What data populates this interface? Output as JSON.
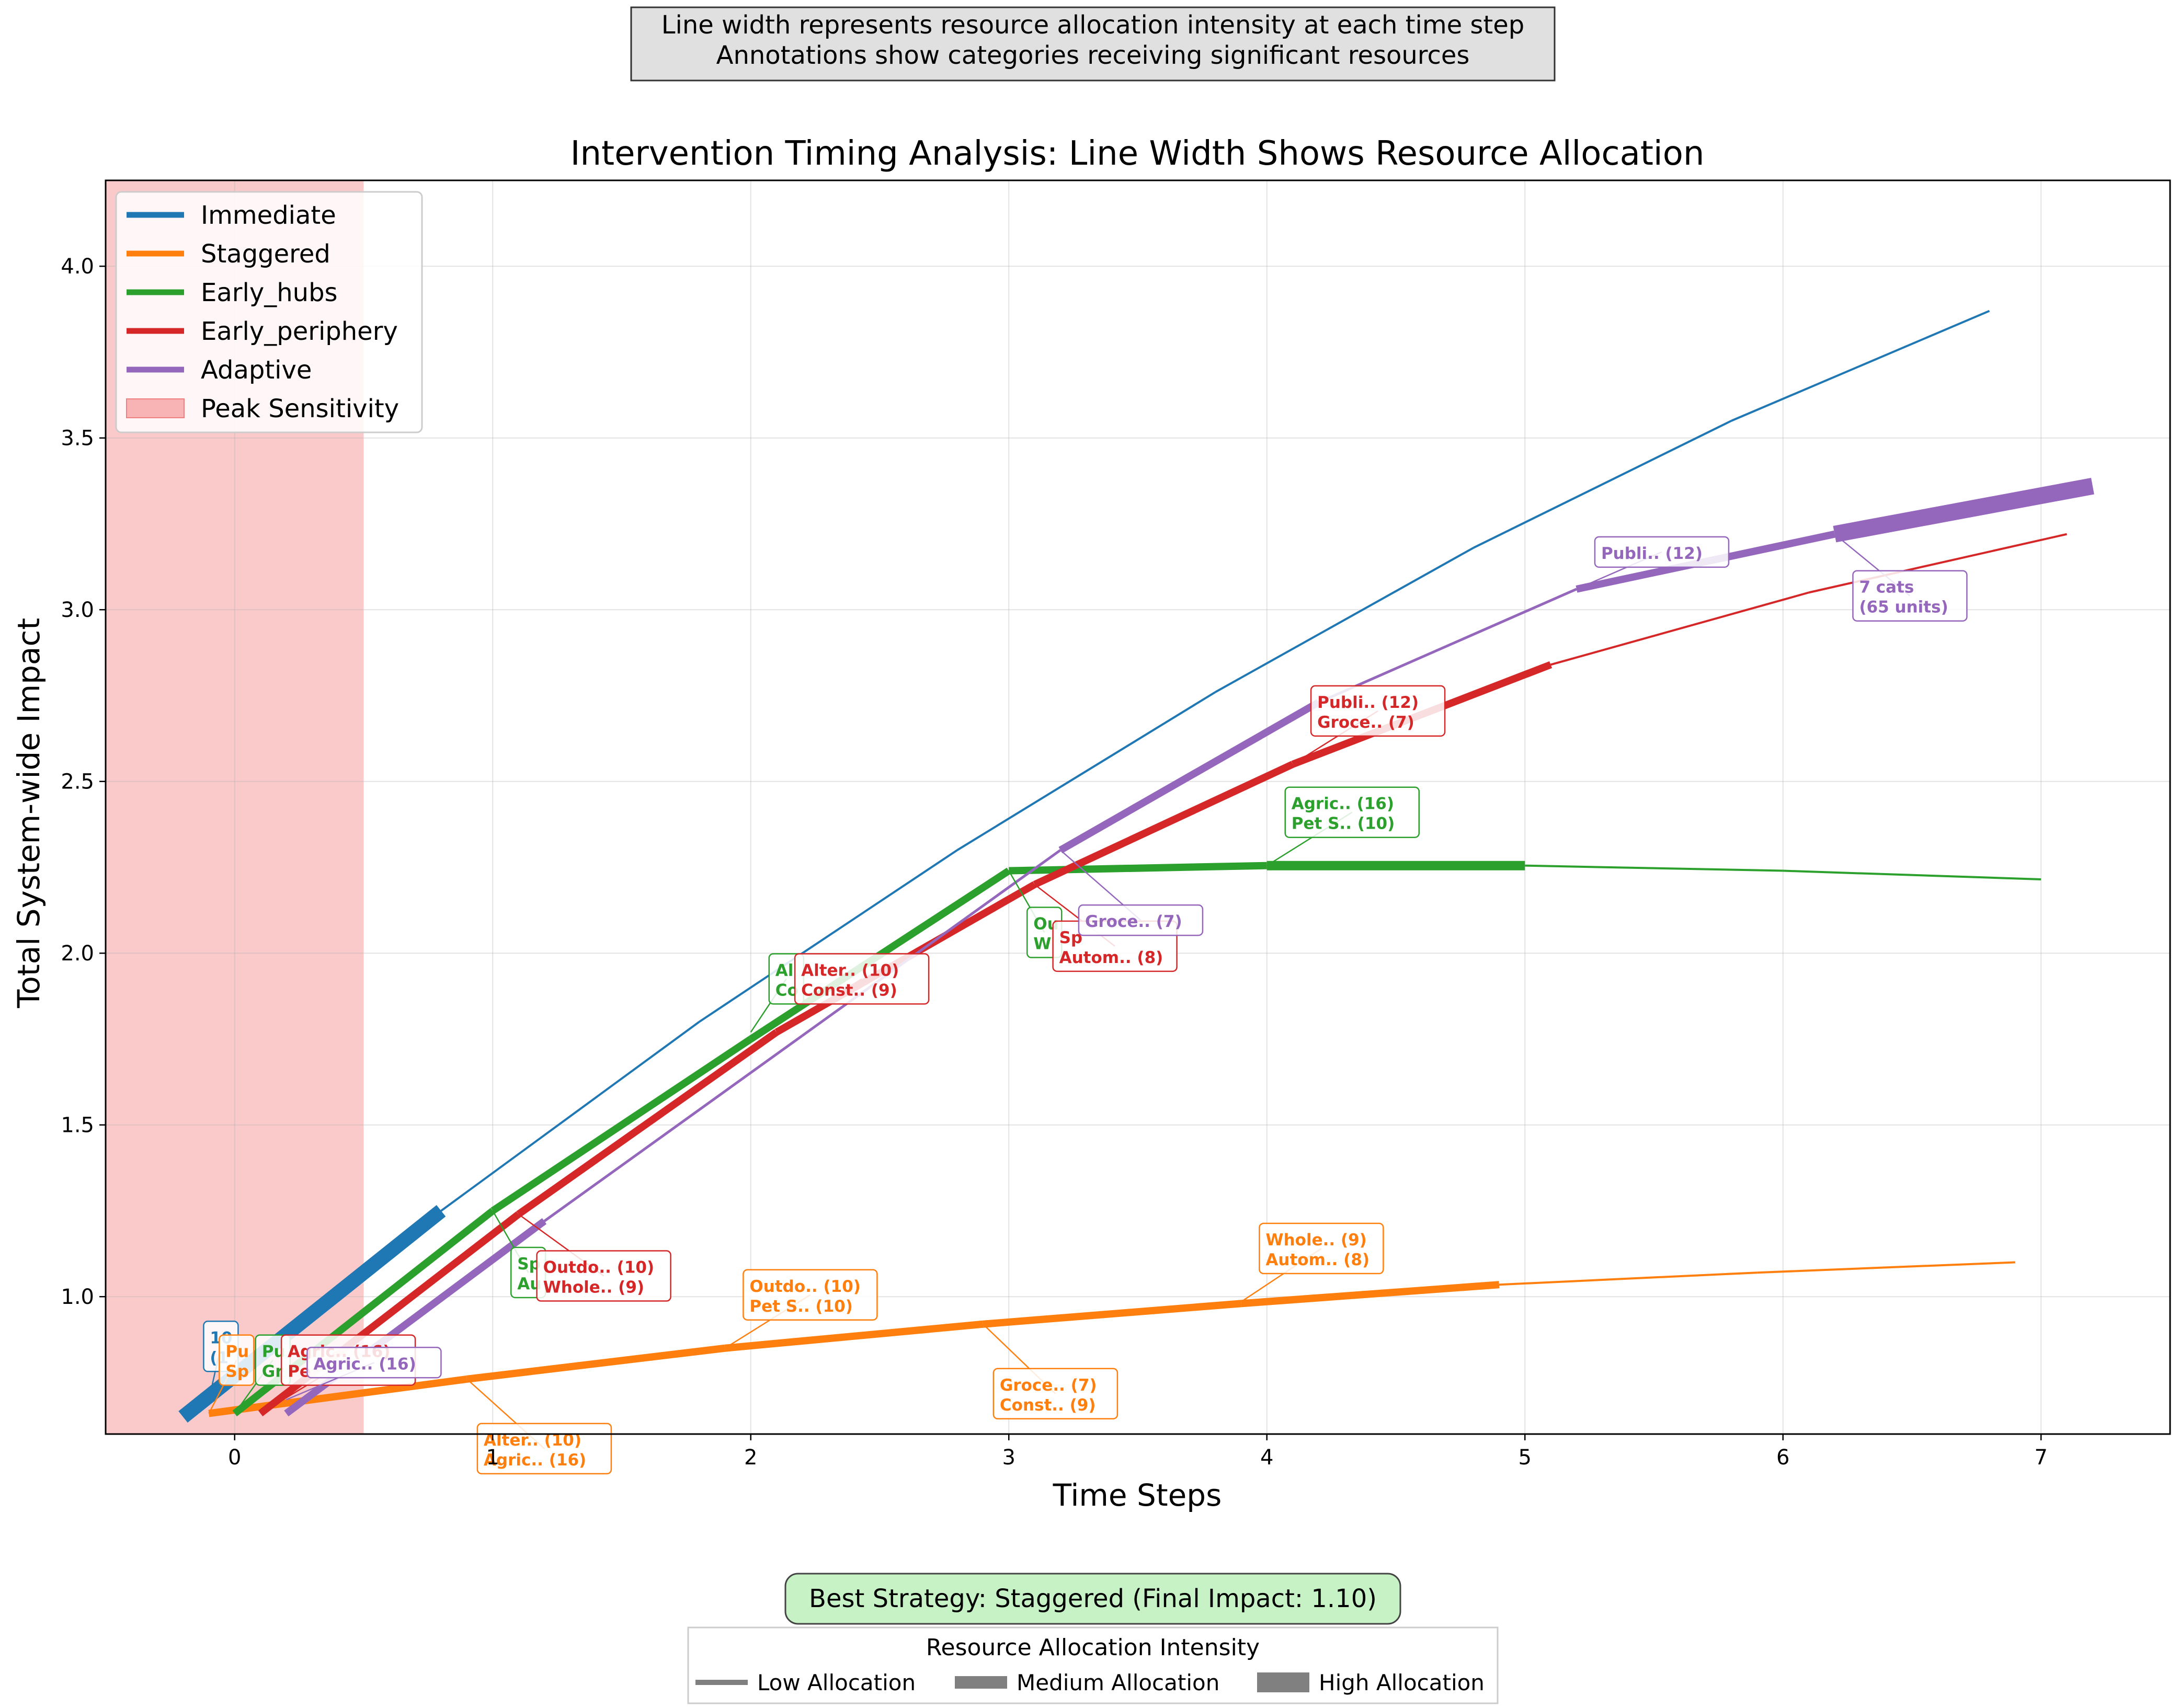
{
  "chart_data": {
    "type": "line",
    "title": "Intervention Timing Analysis: Line Width Shows Resource Allocation",
    "xlabel": "Time Steps",
    "ylabel": "Total System-wide Impact",
    "xlim": [
      -0.5,
      7.5
    ],
    "ylim": [
      0.6,
      4.25
    ],
    "xticks": [
      "0",
      "1",
      "2",
      "3",
      "4",
      "5",
      "6",
      "7"
    ],
    "yticks": [
      "1.0",
      "1.5",
      "2.0",
      "2.5",
      "3.0",
      "3.5",
      "4.0"
    ],
    "xtick_values": [
      0,
      1,
      2,
      3,
      4,
      5,
      6,
      7
    ],
    "ytick_values": [
      1.0,
      1.5,
      2.0,
      2.5,
      3.0,
      3.5,
      4.0
    ],
    "grid": true,
    "legend_position": "top-left",
    "colors": {
      "Immediate": "#1f77b4",
      "Staggered": "#ff7f0e",
      "Early_hubs": "#2ca02c",
      "Early_periphery": "#d62728",
      "Adaptive": "#9467bd",
      "peak": "#f8b4b4"
    },
    "shaded_region": {
      "label": "Peak Sensitivity",
      "x_start": -0.5,
      "x_end": 0.5
    },
    "series": [
      {
        "name": "Immediate",
        "color": "#1f77b4",
        "x": [
          -0.2,
          0.8,
          1.8,
          2.8,
          3.8,
          4.8,
          5.8,
          6.8
        ],
        "y": [
          0.65,
          1.25,
          1.8,
          2.3,
          2.76,
          3.18,
          3.55,
          3.87
        ],
        "widths": [
          28,
          4,
          4,
          4,
          4,
          4,
          4
        ]
      },
      {
        "name": "Staggered",
        "color": "#ff7f0e",
        "x": [
          -0.1,
          0.9,
          1.9,
          2.9,
          3.9,
          4.9,
          5.9,
          6.9
        ],
        "y": [
          0.66,
          0.76,
          0.85,
          0.92,
          0.98,
          1.035,
          1.07,
          1.1
        ],
        "widths": [
          14,
          14,
          14,
          14,
          14,
          4,
          4
        ]
      },
      {
        "name": "Early_hubs",
        "color": "#2ca02c",
        "x": [
          0.0,
          1.0,
          2.0,
          3.0,
          4.0,
          5.0,
          6.0,
          7.0
        ],
        "y": [
          0.66,
          1.25,
          1.75,
          2.24,
          2.255,
          2.255,
          2.24,
          2.215
        ],
        "widths": [
          14,
          14,
          14,
          14,
          18,
          4,
          4
        ]
      },
      {
        "name": "Early_periphery",
        "color": "#d62728",
        "x": [
          0.1,
          1.1,
          2.1,
          3.1,
          4.1,
          5.1,
          6.1,
          7.1
        ],
        "y": [
          0.66,
          1.24,
          1.77,
          2.2,
          2.55,
          2.84,
          3.05,
          3.22
        ],
        "widths": [
          14,
          14,
          14,
          14,
          14,
          4,
          4
        ]
      },
      {
        "name": "Adaptive",
        "color": "#9467bd",
        "x": [
          0.2,
          1.2,
          2.2,
          3.2,
          4.2,
          5.2,
          6.2,
          7.2
        ],
        "y": [
          0.66,
          1.22,
          1.76,
          2.3,
          2.73,
          3.06,
          3.22,
          3.36
        ],
        "widths": [
          14,
          5,
          5,
          14,
          5,
          14,
          32
        ]
      }
    ],
    "annotations": [
      {
        "series": "Immediate",
        "x": -0.1,
        "y": 0.7,
        "lines": [
          "10",
          "(1"
        ],
        "dx": -10,
        "dy": -150
      },
      {
        "series": "Staggered",
        "x": -0.1,
        "y": 0.66,
        "lines": [
          "Pu",
          "Sp"
        ],
        "dx": 20,
        "dy": -150
      },
      {
        "series": "Staggered",
        "x": 0.9,
        "y": 0.76,
        "lines": [
          "Alter.. (10)",
          "Agric.. (16)"
        ],
        "dx": 20,
        "dy": 85
      },
      {
        "series": "Staggered",
        "x": 1.9,
        "y": 0.85,
        "lines": [
          "Outdo.. (10)",
          "Pet S.. (10)"
        ],
        "dx": 35,
        "dy": -150
      },
      {
        "series": "Staggered",
        "x": 2.9,
        "y": 0.92,
        "lines": [
          "Groce.. (7)",
          "Const.. (9)"
        ],
        "dx": 20,
        "dy": 85
      },
      {
        "series": "Staggered",
        "x": 3.9,
        "y": 0.985,
        "lines": [
          "Whole.. (9)",
          "Autom.. (8)"
        ],
        "dx": 35,
        "dy": -150
      },
      {
        "series": "Early_hubs",
        "x": 0.0,
        "y": 0.66,
        "lines": [
          "Pu",
          "Gr"
        ],
        "dx": 40,
        "dy": -150
      },
      {
        "series": "Early_hubs",
        "x": 1.0,
        "y": 1.25,
        "lines": [
          "Sp",
          "Au"
        ],
        "dx": 35,
        "dy": 70
      },
      {
        "series": "Early_hubs",
        "x": 2.0,
        "y": 1.77,
        "lines": [
          "Al",
          "Co"
        ],
        "dx": 35,
        "dy": -150
      },
      {
        "series": "Early_hubs",
        "x": 3.0,
        "y": 2.24,
        "lines": [
          "Ou",
          "W"
        ],
        "dx": 35,
        "dy": 70
      },
      {
        "series": "Early_hubs",
        "x": 4.0,
        "y": 2.255,
        "lines": [
          "Agric.. (16)",
          "Pet S.. (10)"
        ],
        "dx": 35,
        "dy": -150
      },
      {
        "series": "Early_periphery",
        "x": 0.1,
        "y": 0.66,
        "lines": [
          "Agric.. (16)",
          "Pe"
        ],
        "dx": 40,
        "dy": -150
      },
      {
        "series": "Early_periphery",
        "x": 1.1,
        "y": 1.24,
        "lines": [
          "Outdo.. (10)",
          "Whole.. (9)"
        ],
        "dx": 35,
        "dy": 70
      },
      {
        "series": "Early_periphery",
        "x": 2.1,
        "y": 1.77,
        "lines": [
          "Alter.. (10)",
          "Const.. (9)"
        ],
        "dx": 35,
        "dy": -150
      },
      {
        "series": "Early_periphery",
        "x": 3.1,
        "y": 2.2,
        "lines": [
          "Sp",
          "Autom.. (8)"
        ],
        "dx": 35,
        "dy": 70
      },
      {
        "series": "Early_periphery",
        "x": 4.1,
        "y": 2.55,
        "lines": [
          "Publi.. (12)",
          "Groce.. (7)"
        ],
        "dx": 35,
        "dy": -150
      },
      {
        "series": "Adaptive",
        "x": 0.2,
        "y": 0.7,
        "lines": [
          "Agric.. (16)"
        ],
        "dx": 40,
        "dy": -100
      },
      {
        "series": "Adaptive",
        "x": 3.2,
        "y": 2.3,
        "lines": [
          "Groce.. (7)"
        ],
        "dx": 35,
        "dy": 105
      },
      {
        "series": "Adaptive",
        "x": 5.2,
        "y": 3.06,
        "lines": [
          "Publi.. (12)"
        ],
        "dx": 35,
        "dy": -100
      },
      {
        "series": "Adaptive",
        "x": 6.2,
        "y": 3.22,
        "lines": [
          "7 cats",
          "(65 units)"
        ],
        "dx": 35,
        "dy": 70
      }
    ],
    "top_box": [
      "Line width represents resource allocation intensity at each time step",
      "Annotations show categories receiving significant resources"
    ],
    "best_strategy": "Best Strategy: Staggered (Final Impact: 1.10)",
    "width_legend": {
      "title": "Resource Allocation Intensity",
      "items": [
        {
          "label": "Low Allocation",
          "width": 10
        },
        {
          "label": "Medium Allocation",
          "width": 24
        },
        {
          "label": "High Allocation",
          "width": 38
        }
      ]
    }
  }
}
